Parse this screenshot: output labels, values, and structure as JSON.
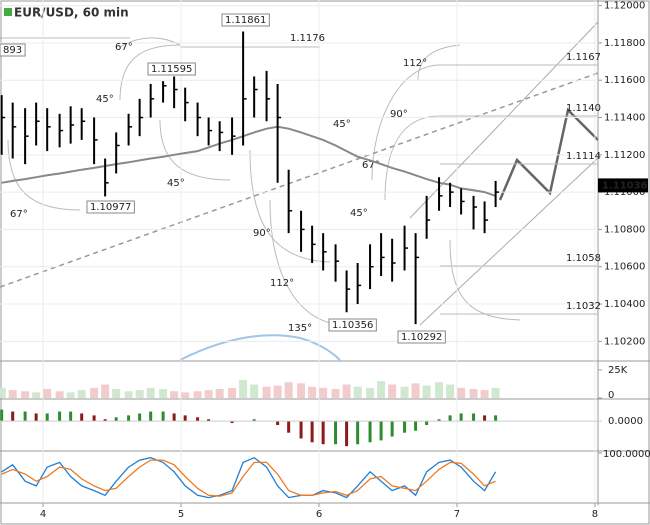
{
  "chart_data": {
    "type": "ohlc",
    "title": "EUR/USD, 60 min",
    "x": [
      3.7,
      3.78,
      3.87,
      3.95,
      4.03,
      4.12,
      4.2,
      4.28,
      4.37,
      4.45,
      4.53,
      4.62,
      4.7,
      4.78,
      4.87,
      4.95,
      5.03,
      5.12,
      5.2,
      5.28,
      5.37,
      5.45,
      5.53,
      5.62,
      5.7,
      5.78,
      5.87,
      5.95,
      6.03,
      6.12,
      6.2,
      6.28,
      6.37,
      6.45,
      6.53,
      6.62,
      6.7,
      6.78,
      6.87,
      6.95,
      7.03,
      7.12,
      7.2,
      7.28
    ],
    "high": [
      1.1152,
      1.1148,
      1.1145,
      1.1148,
      1.1145,
      1.1142,
      1.1146,
      1.1145,
      1.114,
      1.1118,
      1.1132,
      1.1142,
      1.115,
      1.1158,
      1.11595,
      1.1162,
      1.1156,
      1.1148,
      1.114,
      1.1138,
      1.114,
      1.11861,
      1.1162,
      1.1165,
      1.1158,
      1.1112,
      1.109,
      1.1082,
      1.1078,
      1.1072,
      1.1058,
      1.1062,
      1.1072,
      1.1078,
      1.1075,
      1.1082,
      1.1078,
      1.1098,
      1.1108,
      1.1105,
      1.1102,
      1.1098,
      1.1095,
      1.1106
    ],
    "low": [
      1.112,
      1.1118,
      1.1115,
      1.1125,
      1.1122,
      1.1124,
      1.1126,
      1.1128,
      1.1115,
      1.10977,
      1.111,
      1.1125,
      1.113,
      1.114,
      1.1148,
      1.1145,
      1.1138,
      1.113,
      1.1125,
      1.1122,
      1.112,
      1.1125,
      1.114,
      1.1138,
      1.1105,
      1.1078,
      1.1068,
      1.1062,
      1.1058,
      1.1052,
      1.10356,
      1.104,
      1.1048,
      1.1055,
      1.1052,
      1.1058,
      1.10292,
      1.1075,
      1.109,
      1.1092,
      1.1088,
      1.108,
      1.1078,
      1.1092
    ],
    "close": [
      1.114,
      1.1135,
      1.113,
      1.1138,
      1.1135,
      1.1133,
      1.1136,
      1.1138,
      1.1128,
      1.1105,
      1.1125,
      1.1135,
      1.114,
      1.115,
      1.1157,
      1.1155,
      1.1148,
      1.114,
      1.1133,
      1.1132,
      1.113,
      1.115,
      1.1155,
      1.115,
      1.114,
      1.109,
      1.108,
      1.1072,
      1.1068,
      1.1063,
      1.1048,
      1.105,
      1.106,
      1.1065,
      1.1062,
      1.107,
      1.1065,
      1.1085,
      1.1098,
      1.11,
      1.1095,
      1.1092,
      1.1085,
      1.11
    ],
    "ma": [
      1.1105,
      1.1106,
      1.1107,
      1.1108,
      1.1109,
      1.111,
      1.1111,
      1.1112,
      1.1113,
      1.1114,
      1.1115,
      1.1116,
      1.1117,
      1.1118,
      1.1119,
      1.112,
      1.1121,
      1.1122,
      1.1124,
      1.1126,
      1.1128,
      1.113,
      1.1132,
      1.1134,
      1.1135,
      1.1134,
      1.1132,
      1.113,
      1.1128,
      1.1125,
      1.1122,
      1.1119,
      1.1117,
      1.1115,
      1.1113,
      1.1111,
      1.1109,
      1.1107,
      1.1105,
      1.1104,
      1.1102,
      1.1101,
      1.11,
      1.1098
    ],
    "color": "#000000",
    "ma_color": "#888888",
    "xlim": [
      3.688,
      8.022
    ],
    "xticks": [
      4,
      5,
      6,
      7,
      8
    ],
    "ylim": [
      1.101,
      1.1203
    ],
    "yticks": [
      {
        "value": 1.12,
        "label": "1.12000"
      },
      {
        "value": 1.118,
        "label": "1.11800"
      },
      {
        "value": 1.116,
        "label": "1.11600"
      },
      {
        "value": 1.114,
        "label": "1.11400"
      },
      {
        "value": 1.112,
        "label": "1.11200"
      },
      {
        "value": 1.11,
        "label": "1.11000"
      },
      {
        "value": 1.108,
        "label": "1.10800"
      },
      {
        "value": 1.106,
        "label": "1.10600"
      },
      {
        "value": 1.104,
        "label": "1.10400"
      },
      {
        "value": 1.102,
        "label": "1.10200"
      }
    ],
    "grid": true,
    "current_price": {
      "value": 1.11036,
      "label": "1.11036"
    },
    "annotations": [
      "893",
      "1.11861",
      "1.1176",
      "1.11595",
      "1.10977",
      "1.10356",
      "1.10292",
      "1.1167",
      "1.1140",
      "1.1114",
      "1.1058",
      "1.1032"
    ],
    "angles": [
      "67°",
      "45°",
      "45°",
      "45°",
      "67°",
      "67°",
      "90°",
      "112°",
      "45°",
      "90°",
      "112°",
      "135°"
    ],
    "volume": {
      "values": [
        9000,
        7000,
        6000,
        5000,
        8000,
        6000,
        5000,
        7000,
        9000,
        12000,
        8000,
        6000,
        7000,
        9000,
        8000,
        6000,
        5000,
        6000,
        7000,
        8000,
        9000,
        16000,
        12000,
        10000,
        11000,
        14000,
        13000,
        10000,
        9000,
        8000,
        12000,
        10000,
        9000,
        15000,
        12000,
        10000,
        13000,
        11000,
        14000,
        12000,
        9000,
        8000,
        7000,
        9000
      ],
      "ylim": [
        0,
        32000
      ],
      "yticks": [
        {
          "value": 25000,
          "label": "25K"
        },
        0
      ]
    },
    "macd": {
      "values": [
        0.0006,
        0.0005,
        0.0005,
        0.0004,
        0.0004,
        0.0005,
        0.0005,
        0.0004,
        0.0003,
        0.0001,
        0.0002,
        0.0003,
        0.0004,
        0.0005,
        0.0005,
        0.0004,
        0.0003,
        0.0002,
        0.0001,
        0.0,
        -0.0001,
        0.0,
        0.0001,
        0.0,
        -0.0002,
        -0.0006,
        -0.0009,
        -0.0011,
        -0.0012,
        -0.0012,
        -0.0013,
        -0.0012,
        -0.0011,
        -0.001,
        -0.0008,
        -0.0006,
        -0.0005,
        -0.0002,
        0.0001,
        0.0003,
        0.0004,
        0.0004,
        0.0003,
        0.0003
      ],
      "ylim": [
        -0.0015,
        0.0011
      ],
      "yticks": [
        {
          "value": 0,
          "label": "0.0000"
        }
      ]
    },
    "stoch": {
      "series": [
        {
          "color": "#1e7fd8",
          "values": [
            60,
            75,
            40,
            30,
            70,
            80,
            50,
            30,
            20,
            10,
            40,
            70,
            85,
            90,
            80,
            60,
            30,
            10,
            5,
            10,
            20,
            80,
            90,
            70,
            30,
            5,
            10,
            10,
            20,
            15,
            5,
            30,
            60,
            40,
            20,
            30,
            10,
            60,
            80,
            85,
            70,
            40,
            20,
            60
          ]
        },
        {
          "color": "#f07a1e",
          "values": [
            55,
            65,
            55,
            40,
            50,
            70,
            65,
            45,
            30,
            20,
            25,
            50,
            70,
            85,
            85,
            75,
            50,
            25,
            10,
            8,
            15,
            50,
            80,
            80,
            55,
            20,
            10,
            10,
            15,
            18,
            10,
            20,
            45,
            50,
            30,
            25,
            20,
            40,
            65,
            80,
            78,
            55,
            30,
            40
          ]
        }
      ],
      "ylim": [
        0,
        100
      ],
      "yticks": [
        {
          "value": 100,
          "label": "100.0000"
        }
      ]
    }
  }
}
